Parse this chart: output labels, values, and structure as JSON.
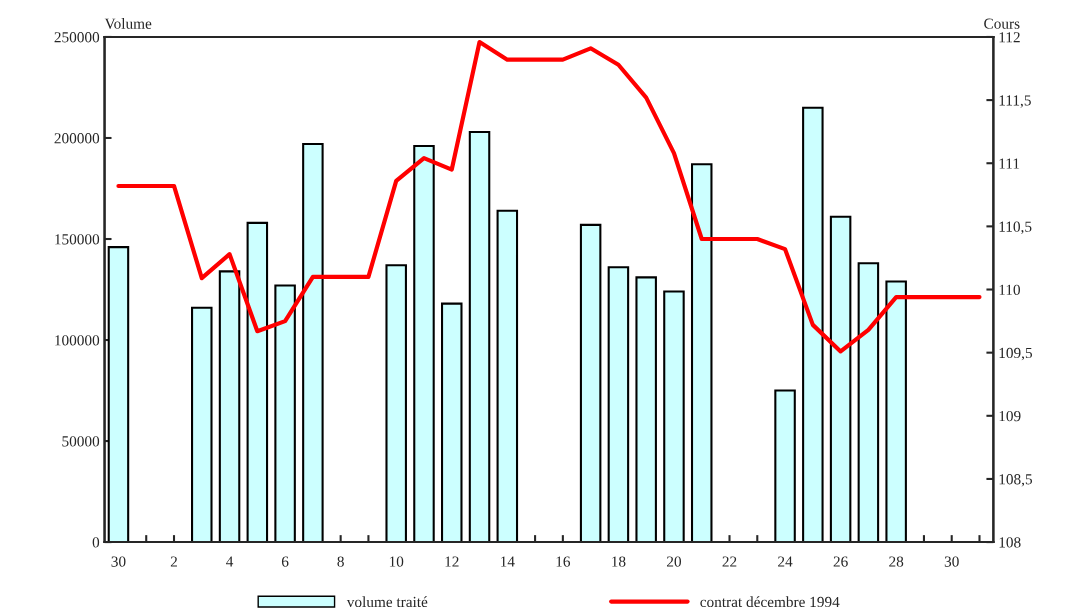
{
  "chart_data": {
    "type": "bar",
    "ylabel": "Volume",
    "y2label": "Cours",
    "categories": [
      "30",
      null,
      "2",
      null,
      "4",
      null,
      "6",
      null,
      "8",
      null,
      "10",
      null,
      "12",
      null,
      "14",
      null,
      "16",
      null,
      "18",
      null,
      "20",
      null,
      "22",
      null,
      "24",
      null,
      "26",
      null,
      "28",
      null,
      "30",
      null
    ],
    "series": [
      {
        "name": "volume traité",
        "color": "#ccffff",
        "values": [
          146000,
          null,
          null,
          116000,
          134000,
          158000,
          127000,
          197000,
          null,
          null,
          137000,
          196000,
          118000,
          203000,
          164000,
          null,
          null,
          157000,
          136000,
          131000,
          124000,
          187000,
          null,
          null,
          75000,
          215000,
          161000,
          138000,
          129000,
          null,
          null,
          null
        ]
      },
      {
        "name": "contrat décembre 1994",
        "type": "line",
        "axis": "y2",
        "color": "#ff0000",
        "values": [
          110.82,
          110.82,
          110.82,
          110.09,
          110.28,
          109.67,
          109.75,
          110.1,
          110.1,
          110.1,
          110.86,
          111.04,
          110.95,
          111.96,
          111.82,
          111.82,
          111.82,
          111.91,
          111.78,
          111.52,
          111.08,
          110.4,
          110.4,
          110.4,
          110.32,
          109.72,
          109.51,
          109.68,
          109.94,
          109.94,
          109.94,
          109.94
        ]
      }
    ],
    "ylim": [
      0,
      250000
    ],
    "yticks": [
      0,
      50000,
      100000,
      150000,
      200000,
      250000
    ],
    "y2lim": [
      108,
      112
    ],
    "y2ticks": [
      108,
      {
        "value": 108.5,
        "label": "108,5"
      },
      109,
      {
        "value": 109.5,
        "label": "109,5"
      },
      110,
      {
        "value": 110.5,
        "label": "110,5"
      },
      111,
      {
        "value": 111.5,
        "label": "111,5"
      },
      112
    ],
    "grid": false,
    "legend": "bottom",
    "marker": "none",
    "line_style": "solid"
  }
}
